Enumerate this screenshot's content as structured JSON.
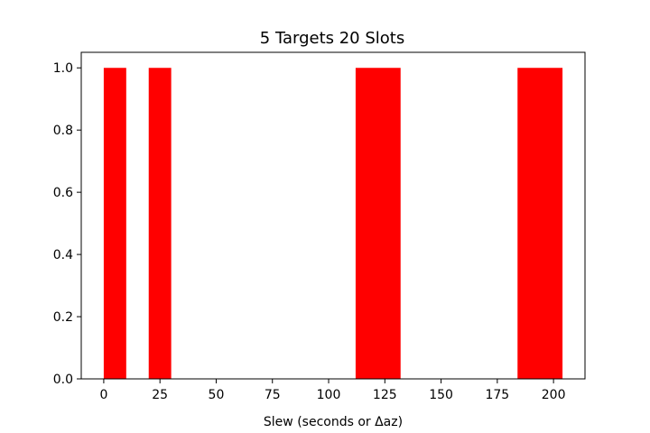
{
  "chart_data": {
    "type": "bar",
    "title": "5 Targets 20 Slots",
    "xlabel": "Slew (seconds or Δaz)",
    "ylabel": "",
    "xlim": [
      -10,
      214
    ],
    "ylim": [
      0,
      1.05
    ],
    "x_ticks": [
      0,
      25,
      50,
      75,
      100,
      125,
      150,
      175,
      200
    ],
    "x_tick_labels": [
      "0",
      "25",
      "50",
      "75",
      "100",
      "125",
      "150",
      "175",
      "200"
    ],
    "y_ticks": [
      0,
      0.2,
      0.4,
      0.6,
      0.8,
      1.0
    ],
    "y_tick_labels": [
      "0.0",
      "0.2",
      "0.4",
      "0.6",
      "0.8",
      "1.0"
    ],
    "bar_color": "#ff0000",
    "grid": false,
    "bars": [
      {
        "x_start": 0,
        "x_end": 10,
        "value": 1.0
      },
      {
        "x_start": 20,
        "x_end": 30,
        "value": 1.0
      },
      {
        "x_start": 112,
        "x_end": 132,
        "value": 1.0
      },
      {
        "x_start": 184,
        "x_end": 204,
        "value": 1.0
      }
    ]
  }
}
